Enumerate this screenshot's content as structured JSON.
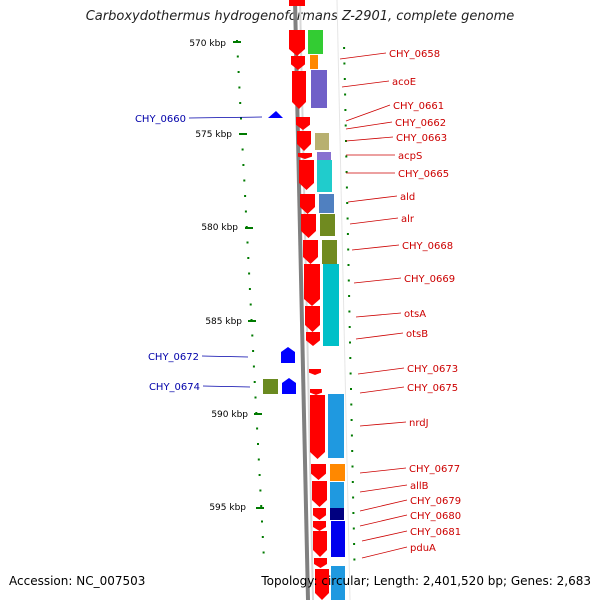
{
  "title": "Carboxydothermus hydrogenoformans Z-2901, complete genome",
  "accession": "Accession: NC_007503",
  "topology": "Topology: circular; Length: 2,401,520 bp; Genes: 2,683",
  "scale_labels": [
    "570 kbp",
    "575 kbp",
    "580 kbp",
    "585 kbp",
    "590 kbp",
    "595 kbp"
  ],
  "colors": {
    "forward_gene": "#ff0000",
    "reverse_gene": "#0000ff",
    "forward_label": "#cc0000",
    "reverse_label": "#0000aa",
    "backbone": "#808080",
    "tick": "#007a00"
  },
  "forward_genes": [
    "CHY_0658",
    "acoE",
    "CHY_0661",
    "CHY_0662",
    "CHY_0663",
    "acpS",
    "CHY_0665",
    "ald",
    "alr",
    "CHY_0668",
    "CHY_0669",
    "otsA",
    "otsB",
    "CHY_0673",
    "CHY_0675",
    "nrdJ",
    "CHY_0677",
    "allB",
    "CHY_0679",
    "CHY_0680",
    "CHY_0681",
    "pduA"
  ],
  "reverse_genes": [
    "CHY_0660",
    "CHY_0672",
    "CHY_0674"
  ],
  "category_colors": [
    "#33cc33",
    "#7060c8",
    "#b8b070",
    "#8870d0",
    "#20cccc",
    "#5080c0",
    "#708a20",
    "#00c0c8",
    "#ff8800",
    "#1f99e0",
    "#000080",
    "#0000ee"
  ]
}
